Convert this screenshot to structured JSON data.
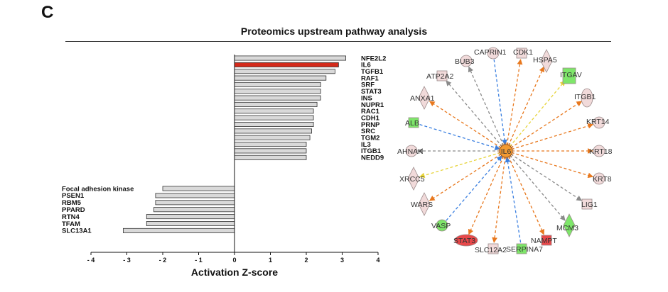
{
  "panel_letter": "C",
  "title": "Proteomics upstream pathway analysis",
  "colors": {
    "bar_fill": "#d9d9d9",
    "bar_highlight": "#d42a1a",
    "label_highlight": "#e0281b",
    "edge_orange": "#e8781e",
    "edge_blue": "#3a7fe0",
    "edge_yellow": "#e7d43a",
    "edge_gray": "#8a8a8a",
    "node_green": "#7ee66a",
    "node_pink": "#f1dada",
    "node_red": "#e8484a",
    "node_hub": "#f29a32"
  },
  "chart_data": [
    {
      "type": "bar",
      "orientation": "horizontal",
      "title": "Proteomics upstream pathway analysis",
      "xlabel": "Activation Z-score",
      "xlim": [
        -4,
        4
      ],
      "xticks": [
        "- 4",
        "- 3",
        "- 2",
        "- 1",
        "0",
        "1",
        "2",
        "3",
        "4"
      ],
      "categories": [
        "NFE2L2",
        "IL6",
        "TGFB1",
        "RAF1",
        "SRF",
        "STAT3",
        "INS",
        "NUPR1",
        "RAC1",
        "CDH1",
        "PRNP",
        "SRC",
        "TGM2",
        "IL3",
        "ITGB1",
        "NEDD9",
        "Focal adhesion kinase",
        "PSEN1",
        "RBM5",
        "PPARD",
        "RTN4",
        "TFAM",
        "SLC13A1"
      ],
      "values": [
        3.1,
        2.9,
        2.8,
        2.55,
        2.4,
        2.4,
        2.4,
        2.3,
        2.2,
        2.2,
        2.2,
        2.15,
        2.1,
        2.0,
        2.0,
        2.0,
        -2.0,
        -2.2,
        -2.2,
        -2.25,
        -2.45,
        -2.45,
        -3.1
      ],
      "highlight": "IL6"
    },
    {
      "type": "network",
      "hub": "IL6",
      "nodes": [
        {
          "label": "CAPRIN1",
          "shape": "circle",
          "color": "pink",
          "edge": "blue",
          "dir": "in"
        },
        {
          "label": "CDK1",
          "shape": "square",
          "color": "pink",
          "edge": "orange",
          "dir": "out"
        },
        {
          "label": "HSPA5",
          "shape": "diamond",
          "color": "pink",
          "edge": "orange",
          "dir": "out"
        },
        {
          "label": "ITGAV",
          "shape": "square",
          "color": "green",
          "edge": "yellow",
          "dir": "out"
        },
        {
          "label": "ITGB1",
          "shape": "ellipse",
          "color": "pink",
          "edge": "orange",
          "dir": "out"
        },
        {
          "label": "KRT14",
          "shape": "circle",
          "color": "pink",
          "edge": "orange",
          "dir": "out"
        },
        {
          "label": "KRT18",
          "shape": "circle",
          "color": "pink",
          "edge": "orange",
          "dir": "out"
        },
        {
          "label": "KRT8",
          "shape": "circle",
          "color": "pink",
          "edge": "orange",
          "dir": "out"
        },
        {
          "label": "LIG1",
          "shape": "square",
          "color": "pink",
          "edge": "gray",
          "dir": "out"
        },
        {
          "label": "MCM3",
          "shape": "diamond",
          "color": "green",
          "edge": "gray",
          "dir": "out"
        },
        {
          "label": "NAMPT",
          "shape": "square",
          "color": "red",
          "edge": "orange",
          "dir": "out"
        },
        {
          "label": "SERPINA7",
          "shape": "square",
          "color": "green",
          "edge": "blue",
          "dir": "in"
        },
        {
          "label": "SLC12A2",
          "shape": "square",
          "color": "pink",
          "edge": "orange",
          "dir": "out"
        },
        {
          "label": "STAT3",
          "shape": "ellipse",
          "color": "red",
          "edge": "orange",
          "dir": "out"
        },
        {
          "label": "VASP",
          "shape": "circle",
          "color": "green",
          "edge": "blue",
          "dir": "in"
        },
        {
          "label": "WARS",
          "shape": "diamond",
          "color": "pink",
          "edge": "orange",
          "dir": "out"
        },
        {
          "label": "XRCC5",
          "shape": "diamond",
          "color": "pink",
          "edge": "yellow",
          "dir": "out"
        },
        {
          "label": "AHNAK",
          "shape": "circle",
          "color": "pink",
          "edge": "gray",
          "dir": "out"
        },
        {
          "label": "ALB",
          "shape": "square",
          "color": "green",
          "edge": "blue",
          "dir": "in"
        },
        {
          "label": "ANXA1",
          "shape": "diamond",
          "color": "pink",
          "edge": "orange",
          "dir": "out"
        },
        {
          "label": "ATP2A2",
          "shape": "square",
          "color": "pink",
          "edge": "gray",
          "dir": "out"
        },
        {
          "label": "BUB3",
          "shape": "circle",
          "color": "pink",
          "edge": "gray",
          "dir": "out"
        }
      ]
    }
  ]
}
